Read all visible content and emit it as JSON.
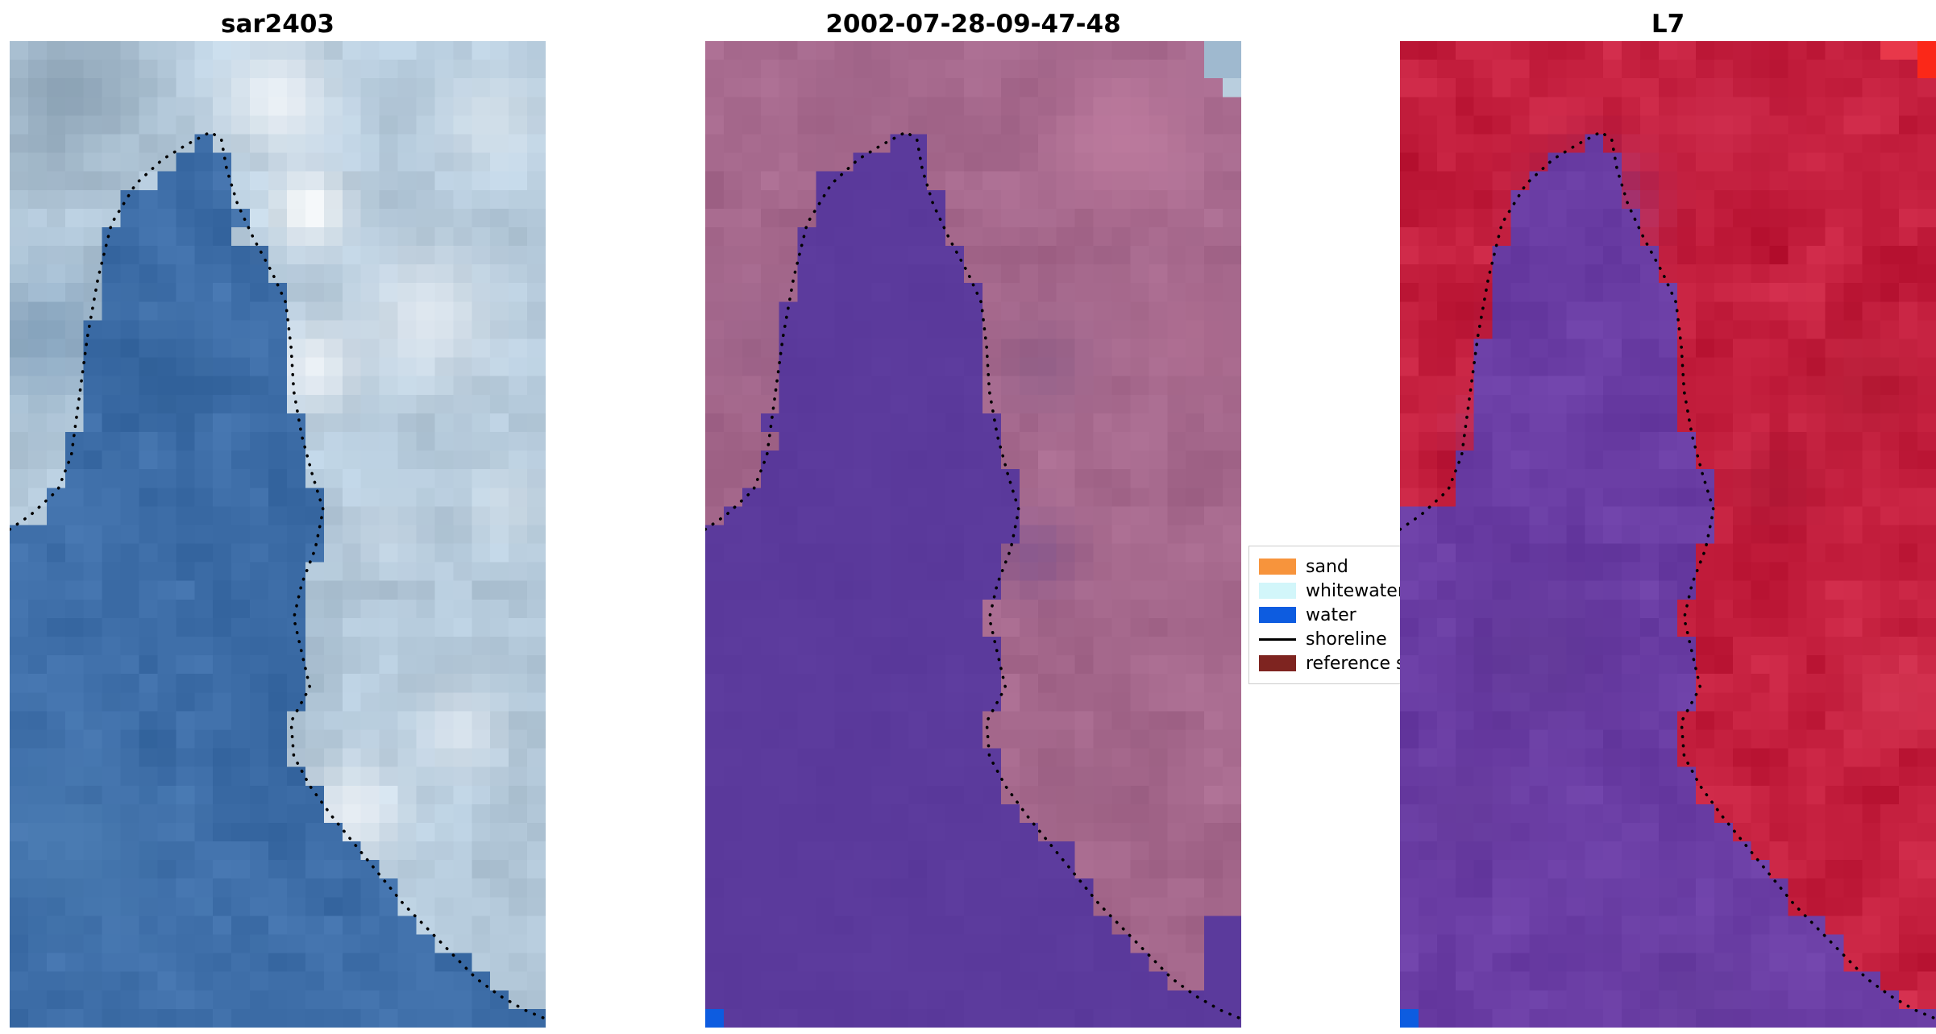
{
  "figure": {
    "background": "#ffffff",
    "panels": [
      {
        "title": "sar2403",
        "seed": 11,
        "grid": [
          29,
          53
        ],
        "water": {
          "base": "#3e6ea8",
          "noise": 16
        },
        "land": {
          "base": "#b4c9da",
          "noise": 22
        },
        "blobs": [
          [
            0.5,
            0.06,
            0.1,
            "#eef3f8",
            0.95,
            "land"
          ],
          [
            0.56,
            0.17,
            0.07,
            "#ffffff",
            0.95,
            "any"
          ],
          [
            0.57,
            0.33,
            0.08,
            "#f2f6fa",
            0.9,
            "land"
          ],
          [
            0.78,
            0.28,
            0.12,
            "#e6edf4",
            0.85,
            "land"
          ],
          [
            0.9,
            0.08,
            0.09,
            "#dce7f0",
            0.8,
            "land"
          ],
          [
            0.7,
            0.5,
            0.08,
            "#c8d8e6",
            0.7,
            "land"
          ],
          [
            0.64,
            0.78,
            0.09,
            "#edf2f7",
            0.9,
            "land"
          ],
          [
            0.84,
            0.7,
            0.08,
            "#e2eaf2",
            0.8,
            "land"
          ],
          [
            0.93,
            0.47,
            0.07,
            "#d5e2ec",
            0.75,
            "land"
          ],
          [
            0.52,
            0.9,
            0.1,
            "#dfe8f0",
            0.8,
            "land"
          ],
          [
            0.45,
            0.6,
            0.1,
            "#9cb6cc",
            0.5,
            "land"
          ],
          [
            0.1,
            0.05,
            0.14,
            "#7f96a9",
            0.75,
            "land"
          ],
          [
            0.07,
            0.3,
            0.12,
            "#6d8fae",
            0.6,
            "land"
          ],
          [
            0.3,
            0.34,
            0.1,
            "#2e5e95",
            0.55,
            "water"
          ],
          [
            0.12,
            0.82,
            0.16,
            "#4f81b5",
            0.55,
            "water"
          ]
        ],
        "patches": []
      },
      {
        "title": "2002-07-28-09-47-48",
        "seed": 22,
        "grid": [
          29,
          53
        ],
        "water": {
          "base": "#5b3a9c",
          "noise": 3
        },
        "land": {
          "base": "#a5688c",
          "noise": 13
        },
        "blobs": [
          [
            0.78,
            0.1,
            0.14,
            "#c07da0",
            0.8,
            "land"
          ],
          [
            0.92,
            0.3,
            0.1,
            "#b06f92",
            0.7,
            "land"
          ],
          [
            0.63,
            0.33,
            0.08,
            "#8d5e88",
            0.65,
            "land"
          ],
          [
            0.86,
            0.55,
            0.1,
            "#a86b8f",
            0.6,
            "land"
          ],
          [
            0.7,
            0.76,
            0.1,
            "#995e81",
            0.7,
            "land"
          ],
          [
            0.61,
            0.52,
            0.07,
            "#7c5492",
            0.6,
            "land"
          ],
          [
            0.1,
            0.3,
            0.11,
            "#9a6289",
            0.6,
            "land"
          ],
          [
            0.3,
            0.05,
            0.12,
            "#a2668a",
            0.55,
            "land"
          ]
        ],
        "patches": [
          [
            0.93,
            0.0,
            1.0,
            0.03,
            "#9fb9cf"
          ],
          [
            0.965,
            0.03,
            1.0,
            0.055,
            "#b9cede"
          ],
          [
            0.93,
            0.885,
            1.0,
            1.0,
            "#5b3a9c"
          ],
          [
            0.0,
            0.972,
            0.026,
            1.0,
            "#0d5ce0"
          ]
        ]
      },
      {
        "title": "L7",
        "seed": 33,
        "grid": [
          29,
          53
        ],
        "water": {
          "base": "#6a3da4",
          "noise": 13
        },
        "land": {
          "base": "#c41f3e",
          "noise": 20
        },
        "blobs": [
          [
            0.6,
            0.08,
            0.12,
            "#d23253",
            0.6,
            "land"
          ],
          [
            0.86,
            0.35,
            0.1,
            "#ad1830",
            0.6,
            "land"
          ],
          [
            0.92,
            0.66,
            0.09,
            "#d63a56",
            0.6,
            "land"
          ],
          [
            0.7,
            0.45,
            0.08,
            "#aa1c38",
            0.5,
            "land"
          ],
          [
            0.36,
            0.17,
            0.09,
            "#7a4eb0",
            0.8,
            "land"
          ],
          [
            0.27,
            0.3,
            0.07,
            "#8352b4",
            0.6,
            "land"
          ],
          [
            0.18,
            0.4,
            0.06,
            "#8a55b8",
            0.5,
            "land"
          ],
          [
            0.25,
            0.62,
            0.13,
            "#5c3590",
            0.6,
            "water"
          ],
          [
            0.12,
            0.78,
            0.1,
            "#643a98",
            0.5,
            "water"
          ],
          [
            0.42,
            0.86,
            0.12,
            "#6f44aa",
            0.5,
            "water"
          ],
          [
            0.55,
            0.97,
            0.1,
            "#5e3794",
            0.5,
            "water"
          ]
        ],
        "patches": [
          [
            0.9,
            0.0,
            0.95,
            0.018,
            "#e8384a"
          ],
          [
            0.95,
            0.0,
            1.0,
            0.03,
            "#fb2818"
          ],
          [
            0.0,
            0.972,
            0.026,
            1.0,
            "#0d5ce0"
          ]
        ]
      }
    ],
    "shoreline": {
      "color": "#000000",
      "points": [
        [
          0.0,
          0.495
        ],
        [
          0.04,
          0.48
        ],
        [
          0.09,
          0.455
        ],
        [
          0.115,
          0.42
        ],
        [
          0.13,
          0.36
        ],
        [
          0.145,
          0.3
        ],
        [
          0.165,
          0.24
        ],
        [
          0.19,
          0.185
        ],
        [
          0.235,
          0.145
        ],
        [
          0.285,
          0.12
        ],
        [
          0.33,
          0.105
        ],
        [
          0.375,
          0.092
        ],
        [
          0.395,
          0.1
        ],
        [
          0.405,
          0.13
        ],
        [
          0.425,
          0.165
        ],
        [
          0.455,
          0.2
        ],
        [
          0.49,
          0.235
        ],
        [
          0.515,
          0.265
        ],
        [
          0.525,
          0.31
        ],
        [
          0.53,
          0.355
        ],
        [
          0.545,
          0.4
        ],
        [
          0.565,
          0.44
        ],
        [
          0.585,
          0.475
        ],
        [
          0.57,
          0.515
        ],
        [
          0.545,
          0.55
        ],
        [
          0.53,
          0.585
        ],
        [
          0.545,
          0.62
        ],
        [
          0.56,
          0.655
        ],
        [
          0.525,
          0.69
        ],
        [
          0.53,
          0.725
        ],
        [
          0.56,
          0.755
        ],
        [
          0.6,
          0.785
        ],
        [
          0.645,
          0.815
        ],
        [
          0.69,
          0.845
        ],
        [
          0.735,
          0.875
        ],
        [
          0.78,
          0.9
        ],
        [
          0.825,
          0.925
        ],
        [
          0.87,
          0.95
        ],
        [
          0.915,
          0.968
        ],
        [
          0.96,
          0.982
        ],
        [
          0.995,
          0.99
        ]
      ]
    },
    "legend": {
      "entries": [
        {
          "label": "sand",
          "color": "#f7943c",
          "type": "patch"
        },
        {
          "label": "whitewater",
          "color": "#d2f6fa",
          "type": "patch"
        },
        {
          "label": "water",
          "color": "#0d5ce0",
          "type": "patch"
        },
        {
          "label": "shoreline",
          "color": "#000000",
          "type": "line"
        },
        {
          "label": "reference shoreline",
          "color": "#7e2420",
          "type": "patch"
        }
      ]
    }
  },
  "chart_data": {
    "type": "heatmap",
    "panels": [
      {
        "title": "sar2403",
        "content": "satellite image: blue water on left, bright sand/whitewater clouds on right, dotted detected shoreline"
      },
      {
        "title": "2002-07-28-09-47-48",
        "content": "classified scene: solid purple water region, mauve land, pale-blue whitewater pixels top-right, blue water pixel bottom-left, dotted shoreline"
      },
      {
        "title": "L7",
        "content": "Landsat 7 false-color: red land, purple water, bright red pixel top-right, blue pixel bottom-left, dotted shoreline"
      }
    ],
    "legend_entries": [
      "sand",
      "whitewater",
      "water",
      "shoreline",
      "reference shoreline"
    ],
    "legend_position": "right of middle panel, partially covered by third panel",
    "grid": false
  }
}
